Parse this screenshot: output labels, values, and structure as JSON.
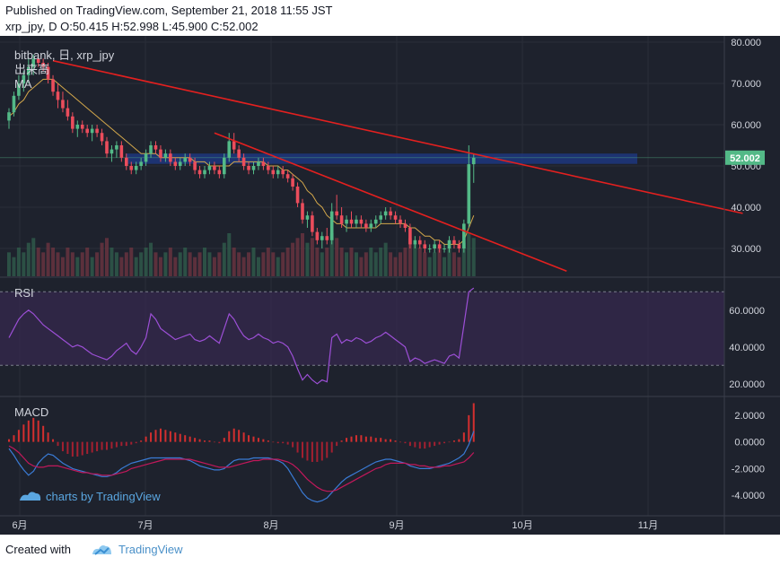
{
  "header": {
    "published": "Published on TradingView.com, September 21, 2018 11:55 JST",
    "ohlc": "xrp_jpy, D O:50.415 H:52.998 L:45.900 C:52.002"
  },
  "footer": {
    "created_with": "Created with",
    "brand": "TradingView"
  },
  "watermark": "charts by TradingView",
  "colors": {
    "background": "#1e222d",
    "up": "#53b987",
    "down": "#eb4d5c",
    "trendline": "#e3201f",
    "zone": "#1e3a8a",
    "rsi": "#9c4fd6",
    "ma": "#d4a84b",
    "macd": "#3a7bd5",
    "signal": "#c2185b"
  },
  "chart_data": [
    {
      "type": "candlestick",
      "legend": [
        "bitbank, 日, xrp_jpy",
        "出来高",
        "MA"
      ],
      "ylim": [
        25,
        80
      ],
      "yticks": [
        "80.000",
        "70.000",
        "60.000",
        "50.000",
        "40.000",
        "30.000"
      ],
      "last_price": "52.002",
      "xticks": [
        "6月",
        "7月",
        "8月",
        "9月",
        "10月",
        "11月"
      ],
      "ohlc": [
        [
          61,
          64,
          59,
          63
        ],
        [
          63,
          68,
          62,
          67
        ],
        [
          67,
          72,
          66,
          70
        ],
        [
          70,
          73,
          68,
          72
        ],
        [
          72,
          76,
          70,
          74
        ],
        [
          74,
          77,
          72,
          76
        ],
        [
          76,
          77,
          74,
          75
        ],
        [
          75,
          76,
          73,
          74
        ],
        [
          74,
          75,
          70,
          71
        ],
        [
          71,
          72,
          67,
          68
        ],
        [
          68,
          70,
          64,
          66
        ],
        [
          66,
          68,
          63,
          64
        ],
        [
          64,
          66,
          61,
          62
        ],
        [
          62,
          63,
          58,
          59
        ],
        [
          59,
          61,
          57,
          60
        ],
        [
          60,
          61,
          58,
          59
        ],
        [
          59,
          60,
          57,
          58
        ],
        [
          58,
          60,
          56,
          59
        ],
        [
          59,
          60,
          57,
          58
        ],
        [
          58,
          59,
          55,
          56
        ],
        [
          56,
          57,
          52,
          53
        ],
        [
          53,
          55,
          51,
          54
        ],
        [
          54,
          56,
          52,
          55
        ],
        [
          55,
          56,
          51,
          52
        ],
        [
          52,
          53,
          49,
          50
        ],
        [
          50,
          51,
          48,
          49
        ],
        [
          49,
          51,
          48,
          50
        ],
        [
          50,
          52,
          49,
          51
        ],
        [
          51,
          54,
          50,
          53
        ],
        [
          53,
          56,
          52,
          55
        ],
        [
          55,
          56,
          53,
          54
        ],
        [
          54,
          55,
          51,
          52
        ],
        [
          52,
          54,
          51,
          53
        ],
        [
          53,
          54,
          50,
          51
        ],
        [
          51,
          52,
          49,
          50
        ],
        [
          50,
          52,
          49,
          51
        ],
        [
          51,
          53,
          50,
          52
        ],
        [
          52,
          53,
          50,
          51
        ],
        [
          51,
          52,
          48,
          49
        ],
        [
          49,
          50,
          47,
          48
        ],
        [
          48,
          50,
          47,
          49
        ],
        [
          49,
          51,
          48,
          50
        ],
        [
          50,
          51,
          48,
          49
        ],
        [
          49,
          50,
          47,
          48
        ],
        [
          48,
          53,
          47,
          52
        ],
        [
          52,
          58,
          51,
          56
        ],
        [
          56,
          58,
          53,
          54
        ],
        [
          54,
          55,
          51,
          52
        ],
        [
          52,
          53,
          49,
          50
        ],
        [
          50,
          51,
          48,
          49
        ],
        [
          49,
          51,
          48,
          50
        ],
        [
          50,
          52,
          49,
          51
        ],
        [
          51,
          52,
          49,
          50
        ],
        [
          50,
          51,
          48,
          49
        ],
        [
          49,
          50,
          47,
          48
        ],
        [
          48,
          50,
          47,
          49
        ],
        [
          49,
          50,
          47,
          48
        ],
        [
          48,
          49,
          46,
          47
        ],
        [
          47,
          48,
          44,
          45
        ],
        [
          45,
          46,
          40,
          41
        ],
        [
          41,
          42,
          36,
          37
        ],
        [
          37,
          39,
          35,
          38
        ],
        [
          38,
          39,
          33,
          34
        ],
        [
          34,
          35,
          31,
          32
        ],
        [
          32,
          34,
          30,
          33
        ],
        [
          33,
          35,
          31,
          32
        ],
        [
          32,
          41,
          31,
          39
        ],
        [
          39,
          43,
          37,
          38
        ],
        [
          38,
          40,
          35,
          36
        ],
        [
          36,
          38,
          34,
          37
        ],
        [
          37,
          39,
          35,
          36
        ],
        [
          36,
          38,
          35,
          37
        ],
        [
          37,
          38,
          35,
          36
        ],
        [
          36,
          37,
          34,
          35
        ],
        [
          35,
          37,
          34,
          36
        ],
        [
          36,
          38,
          35,
          37
        ],
        [
          37,
          39,
          36,
          38
        ],
        [
          38,
          40,
          37,
          39
        ],
        [
          39,
          40,
          37,
          38
        ],
        [
          38,
          39,
          36,
          37
        ],
        [
          37,
          38,
          35,
          36
        ],
        [
          36,
          37,
          34,
          35
        ],
        [
          35,
          36,
          30,
          31
        ],
        [
          31,
          33,
          30,
          32
        ],
        [
          32,
          33,
          30,
          31
        ],
        [
          31,
          32,
          29,
          30
        ],
        [
          30,
          31,
          29,
          30
        ],
        [
          30,
          32,
          29,
          31
        ],
        [
          31,
          32,
          29,
          30
        ],
        [
          30,
          31,
          29,
          30
        ],
        [
          30,
          33,
          29,
          32
        ],
        [
          32,
          33,
          30,
          31
        ],
        [
          31,
          32,
          29,
          30
        ],
        [
          30,
          37,
          29,
          36
        ],
        [
          36,
          55,
          35,
          50.415
        ],
        [
          50.415,
          52.998,
          45.9,
          52.002
        ]
      ],
      "ma": [
        62,
        63,
        65,
        66,
        68,
        69,
        70,
        71,
        71,
        71,
        70,
        69,
        68,
        67,
        66,
        65,
        64,
        63,
        62,
        61,
        60,
        59,
        58,
        57,
        56,
        55,
        54,
        53,
        53,
        53,
        53,
        52,
        52,
        52,
        52,
        52,
        52,
        52,
        51,
        51,
        51,
        50,
        50,
        50,
        50,
        50,
        51,
        51,
        51,
        51,
        51,
        51,
        51,
        50,
        50,
        50,
        49,
        49,
        48,
        47,
        46,
        44,
        43,
        41,
        40,
        38,
        37,
        36,
        36,
        35,
        35,
        35,
        35,
        35,
        35,
        35,
        36,
        36,
        36,
        36,
        36,
        36,
        35,
        35,
        34,
        33,
        33,
        32,
        32,
        31,
        31,
        31,
        31,
        32,
        35,
        38
      ],
      "volume": [
        5,
        4,
        6,
        5,
        7,
        8,
        6,
        5,
        7,
        6,
        5,
        4,
        6,
        5,
        4,
        5,
        6,
        4,
        5,
        7,
        8,
        6,
        5,
        4,
        5,
        6,
        4,
        5,
        6,
        7,
        5,
        4,
        5,
        6,
        4,
        5,
        6,
        5,
        4,
        5,
        6,
        5,
        4,
        5,
        7,
        9,
        6,
        5,
        4,
        5,
        6,
        4,
        5,
        6,
        5,
        4,
        5,
        6,
        7,
        8,
        9,
        7,
        8,
        6,
        5,
        6,
        9,
        8,
        6,
        5,
        6,
        5,
        4,
        5,
        6,
        5,
        6,
        7,
        5,
        4,
        5,
        6,
        8,
        7,
        6,
        5,
        4,
        5,
        6,
        4,
        6,
        5,
        4,
        7,
        9,
        8
      ],
      "zone": [
        50.5,
        53
      ],
      "trendlines": [
        {
          "x0": 9,
          "y0": 75.5,
          "x1": 150,
          "y1": 38.5
        },
        {
          "x0": 42,
          "y0": 58,
          "x1": 114,
          "y1": 24.5
        }
      ]
    },
    {
      "type": "line",
      "legend": [
        "RSI"
      ],
      "ylim": [
        15,
        75
      ],
      "yticks": [
        "60.0000",
        "40.0000",
        "20.0000"
      ],
      "band": [
        30,
        70
      ],
      "values": [
        45,
        50,
        55,
        58,
        60,
        58,
        55,
        52,
        50,
        48,
        46,
        44,
        42,
        40,
        41,
        40,
        38,
        36,
        35,
        34,
        33,
        35,
        38,
        40,
        42,
        38,
        36,
        40,
        45,
        58,
        55,
        50,
        48,
        46,
        44,
        45,
        46,
        47,
        44,
        43,
        44,
        46,
        44,
        42,
        50,
        58,
        55,
        50,
        46,
        44,
        45,
        47,
        45,
        44,
        42,
        43,
        42,
        40,
        35,
        28,
        22,
        25,
        22,
        20,
        22,
        21,
        45,
        47,
        42,
        44,
        43,
        45,
        44,
        42,
        43,
        45,
        46,
        48,
        46,
        44,
        42,
        40,
        32,
        34,
        33,
        31,
        32,
        33,
        32,
        31,
        35,
        36,
        34,
        52,
        70,
        72
      ]
    },
    {
      "type": "bar",
      "legend": [
        "MACD"
      ],
      "ylim": [
        -5.2,
        3
      ],
      "yticks": [
        "2.0000",
        "0.0000",
        "-2.0000",
        "-4.0000"
      ],
      "histogram": [
        0.2,
        0.5,
        0.9,
        1.3,
        1.6,
        1.8,
        1.6,
        1.2,
        0.7,
        0.2,
        -0.3,
        -0.7,
        -0.9,
        -1.1,
        -1.1,
        -1.0,
        -0.9,
        -0.8,
        -0.7,
        -0.6,
        -0.6,
        -0.5,
        -0.4,
        -0.3,
        -0.3,
        -0.2,
        -0.1,
        0.1,
        0.4,
        0.7,
        0.9,
        1.0,
        0.9,
        0.8,
        0.7,
        0.6,
        0.5,
        0.4,
        0.3,
        0.2,
        0.1,
        0.1,
        0.0,
        -0.1,
        0.3,
        0.8,
        1.0,
        0.9,
        0.7,
        0.5,
        0.4,
        0.3,
        0.2,
        0.1,
        0.0,
        -0.1,
        -0.1,
        -0.2,
        -0.4,
        -0.8,
        -1.2,
        -1.4,
        -1.5,
        -1.5,
        -1.4,
        -1.2,
        -0.8,
        -0.3,
        0.1,
        0.3,
        0.4,
        0.5,
        0.5,
        0.4,
        0.4,
        0.3,
        0.3,
        0.2,
        0.2,
        0.1,
        0.0,
        -0.1,
        -0.3,
        -0.4,
        -0.5,
        -0.5,
        -0.4,
        -0.3,
        -0.2,
        -0.1,
        0.0,
        0.1,
        0.2,
        0.7,
        2.0,
        2.9
      ],
      "macd": [
        -0.5,
        -1.0,
        -1.6,
        -2.1,
        -2.5,
        -2.2,
        -1.6,
        -1.2,
        -0.9,
        -1.0,
        -1.3,
        -1.6,
        -1.8,
        -2.0,
        -2.1,
        -2.2,
        -2.3,
        -2.4,
        -2.5,
        -2.6,
        -2.6,
        -2.5,
        -2.3,
        -2.0,
        -1.8,
        -1.6,
        -1.5,
        -1.4,
        -1.3,
        -1.2,
        -1.2,
        -1.2,
        -1.2,
        -1.2,
        -1.2,
        -1.2,
        -1.3,
        -1.4,
        -1.6,
        -1.8,
        -1.9,
        -2.0,
        -2.1,
        -2.1,
        -2.0,
        -1.7,
        -1.4,
        -1.3,
        -1.3,
        -1.3,
        -1.2,
        -1.2,
        -1.2,
        -1.2,
        -1.3,
        -1.4,
        -1.6,
        -2.0,
        -2.6,
        -3.2,
        -3.8,
        -4.2,
        -4.4,
        -4.5,
        -4.4,
        -4.2,
        -3.8,
        -3.4,
        -3.0,
        -2.7,
        -2.5,
        -2.3,
        -2.1,
        -1.9,
        -1.7,
        -1.5,
        -1.4,
        -1.3,
        -1.3,
        -1.4,
        -1.5,
        -1.6,
        -1.8,
        -1.9,
        -2.0,
        -2.0,
        -2.0,
        -1.9,
        -1.8,
        -1.7,
        -1.6,
        -1.4,
        -1.2,
        -0.9,
        -0.2,
        0.8
      ],
      "signal": [
        -0.3,
        -0.5,
        -0.8,
        -1.2,
        -1.6,
        -1.8,
        -1.9,
        -1.9,
        -1.8,
        -1.8,
        -1.8,
        -1.9,
        -2.0,
        -2.1,
        -2.2,
        -2.3,
        -2.3,
        -2.4,
        -2.4,
        -2.5,
        -2.5,
        -2.5,
        -2.4,
        -2.3,
        -2.2,
        -2.0,
        -1.9,
        -1.8,
        -1.7,
        -1.6,
        -1.5,
        -1.4,
        -1.3,
        -1.3,
        -1.3,
        -1.3,
        -1.3,
        -1.3,
        -1.4,
        -1.5,
        -1.6,
        -1.7,
        -1.8,
        -1.9,
        -1.9,
        -1.9,
        -1.8,
        -1.7,
        -1.6,
        -1.5,
        -1.4,
        -1.4,
        -1.3,
        -1.3,
        -1.3,
        -1.3,
        -1.4,
        -1.5,
        -1.7,
        -2.0,
        -2.4,
        -2.8,
        -3.1,
        -3.4,
        -3.6,
        -3.7,
        -3.7,
        -3.6,
        -3.4,
        -3.2,
        -3.0,
        -2.8,
        -2.6,
        -2.4,
        -2.2,
        -2.0,
        -1.9,
        -1.7,
        -1.6,
        -1.6,
        -1.6,
        -1.6,
        -1.7,
        -1.7,
        -1.8,
        -1.8,
        -1.9,
        -1.9,
        -1.9,
        -1.8,
        -1.8,
        -1.7,
        -1.6,
        -1.5,
        -1.2,
        -0.8
      ]
    }
  ]
}
